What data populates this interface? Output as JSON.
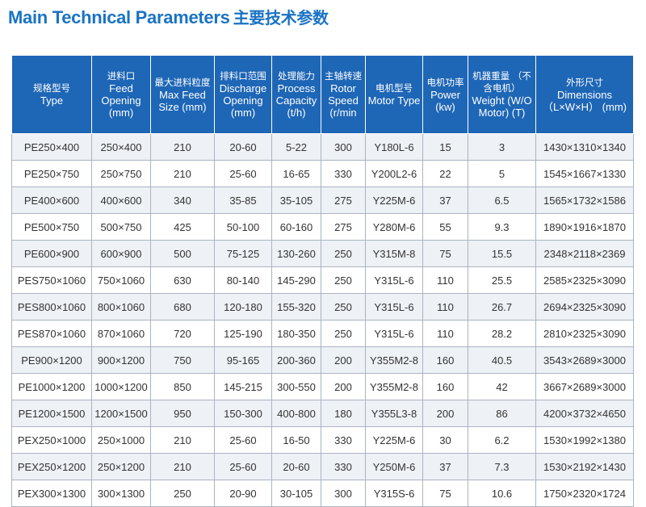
{
  "title": {
    "en": "Main Technical Parameters",
    "cn": "主要技术参数"
  },
  "table": {
    "headers": [
      {
        "cn": "规格型号",
        "en": "Type"
      },
      {
        "cn": "进料口",
        "en": "Feed Opening (mm)"
      },
      {
        "cn": "最大进料粒度",
        "en": "Max Feed Size (mm)"
      },
      {
        "cn": "排料口范围",
        "en": "Discharge Opening (mm)"
      },
      {
        "cn": "处理能力",
        "en": "Process Capacity (t/h)"
      },
      {
        "cn": "主轴转速",
        "en": "Rotor Speed (r/min"
      },
      {
        "cn": "电机型号",
        "en": "Motor Type"
      },
      {
        "cn": "电机功率",
        "en": "Power (kw)"
      },
      {
        "cn": "机器重量 （不含电机）",
        "en": "Weight (W/O Motor) (T)"
      },
      {
        "cn": "外形尺寸",
        "en": "Dimensions （L×W×H） (mm)"
      }
    ],
    "rows": [
      [
        "PE250×400",
        "250×400",
        "210",
        "20-60",
        "5-22",
        "300",
        "Y180L-6",
        "15",
        "3",
        "1430×1310×1340"
      ],
      [
        "PE250×750",
        "250×750",
        "210",
        "25-60",
        "16-65",
        "330",
        "Y200L2-6",
        "22",
        "5",
        "1545×1667×1330"
      ],
      [
        "PE400×600",
        "400×600",
        "340",
        "35-85",
        "35-105",
        "275",
        "Y225M-6",
        "37",
        "6.5",
        "1565×1732×1586"
      ],
      [
        "PE500×750",
        "500×750",
        "425",
        "50-100",
        "60-160",
        "275",
        "Y280M-6",
        "55",
        "9.3",
        "1890×1916×1870"
      ],
      [
        "PE600×900",
        "600×900",
        "500",
        "75-125",
        "130-260",
        "250",
        "Y315M-8",
        "75",
        "15.5",
        "2348×2118×2369"
      ],
      [
        "PES750×1060",
        "750×1060",
        "630",
        "80-140",
        "145-290",
        "250",
        "Y315L-6",
        "110",
        "25.5",
        "2585×2325×3090"
      ],
      [
        "PES800×1060",
        "800×1060",
        "680",
        "120-180",
        "155-320",
        "250",
        "Y315L-6",
        "110",
        "26.7",
        "2694×2325×3090"
      ],
      [
        "PES870×1060",
        "870×1060",
        "720",
        "125-190",
        "180-350",
        "250",
        "Y315L-6",
        "110",
        "28.2",
        "2810×2325×3090"
      ],
      [
        "PE900×1200",
        "900×1200",
        "750",
        "95-165",
        "200-360",
        "200",
        "Y355M2-8",
        "160",
        "40.5",
        "3543×2689×3000"
      ],
      [
        "PE1000×1200",
        "1000×1200",
        "850",
        "145-215",
        "300-550",
        "200",
        "Y355M2-8",
        "160",
        "42",
        "3667×2689×3000"
      ],
      [
        "PE1200×1500",
        "1200×1500",
        "950",
        "150-300",
        "400-800",
        "180",
        "Y355L3-8",
        "200",
        "86",
        "4200×3732×4650"
      ],
      [
        "PEX250×1000",
        "250×1000",
        "210",
        "25-60",
        "16-50",
        "330",
        "Y225M-6",
        "30",
        "6.2",
        "1530×1992×1380"
      ],
      [
        "PEX250×1200",
        "250×1200",
        "210",
        "25-60",
        "20-60",
        "330",
        "Y250M-6",
        "37",
        "7.3",
        "1530×2192×1430"
      ],
      [
        "PEX300×1300",
        "300×1300",
        "250",
        "20-90",
        "30-105",
        "300",
        "Y315S-6",
        "75",
        "10.6",
        "1750×2320×1724"
      ]
    ]
  }
}
